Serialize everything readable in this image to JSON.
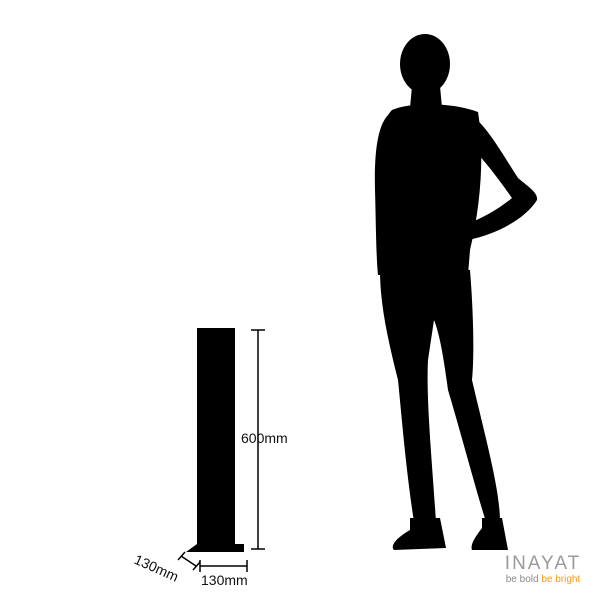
{
  "dimensions": {
    "height_label": "600mm",
    "depth_label": "130mm",
    "width_label": "130mm"
  },
  "brand": {
    "name": "INAYAT",
    "tagline_part1": "be bold",
    "tagline_part2": "be bright",
    "name_color": "#9a9a9a",
    "tagline_color": "#8a8a8a",
    "accent_color": "#f39a1e"
  },
  "illustration": {
    "product": "bollard-silhouette",
    "figure": "person-silhouette",
    "fill_color": "#000000"
  }
}
